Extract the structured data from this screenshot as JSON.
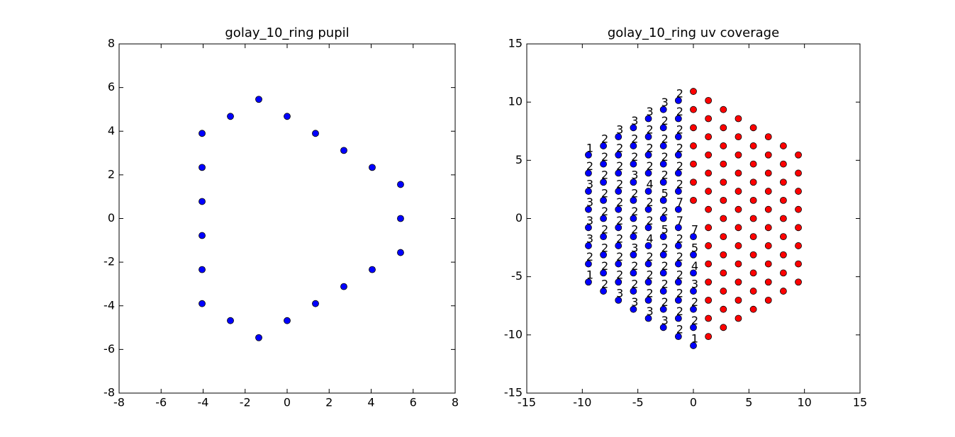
{
  "chart_data": [
    {
      "type": "scatter",
      "title": "golay_10_ring pupil",
      "xlim": [
        -8,
        8
      ],
      "ylim": [
        -8,
        8
      ],
      "xticks": [
        -8,
        -6,
        -4,
        -2,
        0,
        2,
        4,
        6,
        8
      ],
      "yticks": [
        -8,
        -6,
        -4,
        -2,
        0,
        2,
        4,
        6,
        8
      ],
      "series": [
        {
          "color": "#0000ff",
          "x": [
            -1.35,
            -2.7,
            0,
            -4.05,
            1.35,
            2.7,
            -4.05,
            4.05,
            5.4,
            -4.05,
            5.4,
            -4.05,
            5.4,
            -4.05,
            4.05,
            2.7,
            -4.05,
            1.35,
            -2.7,
            0,
            -1.35
          ],
          "y": [
            5.46,
            4.68,
            4.68,
            3.9,
            3.9,
            3.12,
            2.34,
            2.34,
            1.56,
            0.78,
            0,
            -0.78,
            -1.56,
            -2.34,
            -2.34,
            -3.12,
            -3.9,
            -3.9,
            -4.68,
            -4.68,
            -5.46
          ]
        }
      ]
    },
    {
      "type": "scatter",
      "title": "golay_10_ring uv coverage",
      "xlim": [
        -15,
        15
      ],
      "ylim": [
        -15,
        15
      ],
      "xticks": [
        -15,
        -10,
        -5,
        0,
        5,
        10,
        15
      ],
      "yticks": [
        -15,
        -10,
        -5,
        0,
        5,
        10,
        15
      ],
      "series": [
        {
          "color": "#0000ff",
          "x": [
            0,
            0,
            0,
            0,
            0,
            0,
            0,
            -1.35,
            -1.35,
            -1.35,
            -1.35,
            -1.35,
            -1.35,
            -1.35,
            -1.35,
            -1.35,
            -1.35,
            -1.35,
            -1.35,
            -1.35,
            -1.35,
            -2.7,
            -2.7,
            -2.7,
            -2.7,
            -2.7,
            -2.7,
            -2.7,
            -2.7,
            -2.7,
            -2.7,
            -2.7,
            -2.7,
            -2.7,
            -4.05,
            -4.05,
            -4.05,
            -4.05,
            -4.05,
            -4.05,
            -4.05,
            -4.05,
            -4.05,
            -4.05,
            -4.05,
            -4.05,
            -5.4,
            -5.4,
            -5.4,
            -5.4,
            -5.4,
            -5.4,
            -5.4,
            -5.4,
            -5.4,
            -5.4,
            -5.4,
            -6.75,
            -6.75,
            -6.75,
            -6.75,
            -6.75,
            -6.75,
            -6.75,
            -6.75,
            -6.75,
            -6.75,
            -8.1,
            -8.1,
            -8.1,
            -8.1,
            -8.1,
            -8.1,
            -8.1,
            -8.1,
            -8.1,
            -9.45,
            -9.45,
            -9.45,
            -9.45,
            -9.45,
            -9.45,
            -9.45,
            -9.45
          ],
          "y": [
            -1.56,
            -3.12,
            -4.68,
            -6.24,
            -7.8,
            -9.36,
            -10.92,
            10.14,
            8.58,
            7.02,
            5.46,
            3.9,
            2.34,
            0.78,
            -0.78,
            -2.34,
            -3.9,
            -5.46,
            -7.02,
            -8.58,
            -10.14,
            9.36,
            7.8,
            6.24,
            4.68,
            3.12,
            1.56,
            0,
            -1.56,
            -3.12,
            -4.68,
            -6.24,
            -7.8,
            -9.36,
            8.58,
            7.02,
            5.46,
            3.9,
            2.34,
            0.78,
            -0.78,
            -2.34,
            -3.9,
            -5.46,
            -7.02,
            -8.58,
            7.8,
            6.24,
            4.68,
            3.12,
            1.56,
            0,
            -1.56,
            -3.12,
            -4.68,
            -6.24,
            -7.8,
            7.02,
            5.46,
            3.9,
            2.34,
            0.78,
            -0.78,
            -2.34,
            -3.9,
            -5.46,
            -7.02,
            6.24,
            4.68,
            3.12,
            1.56,
            0,
            -1.56,
            -3.12,
            -4.68,
            -6.24,
            5.46,
            3.9,
            2.34,
            0.78,
            -0.78,
            -2.34,
            -3.9,
            -5.46
          ],
          "point_labels": [
            7,
            5,
            4,
            3,
            2,
            2,
            1,
            2,
            2,
            2,
            2,
            2,
            2,
            7,
            7,
            2,
            2,
            2,
            2,
            2,
            2,
            3,
            2,
            2,
            2,
            2,
            5,
            2,
            5,
            2,
            2,
            2,
            2,
            3,
            3,
            2,
            2,
            2,
            4,
            2,
            2,
            4,
            2,
            2,
            2,
            3,
            3,
            2,
            2,
            3,
            2,
            2,
            2,
            3,
            2,
            2,
            3,
            3,
            2,
            2,
            2,
            2,
            2,
            2,
            2,
            2,
            3,
            2,
            2,
            2,
            2,
            2,
            2,
            2,
            2,
            2,
            1,
            2,
            3,
            3,
            3,
            3,
            2,
            1
          ]
        },
        {
          "color": "#ff0000",
          "x": [
            0,
            0,
            0,
            0,
            0,
            0,
            0,
            1.35,
            1.35,
            1.35,
            1.35,
            1.35,
            1.35,
            1.35,
            1.35,
            1.35,
            1.35,
            1.35,
            1.35,
            1.35,
            1.35,
            2.7,
            2.7,
            2.7,
            2.7,
            2.7,
            2.7,
            2.7,
            2.7,
            2.7,
            2.7,
            2.7,
            2.7,
            2.7,
            4.05,
            4.05,
            4.05,
            4.05,
            4.05,
            4.05,
            4.05,
            4.05,
            4.05,
            4.05,
            4.05,
            4.05,
            5.4,
            5.4,
            5.4,
            5.4,
            5.4,
            5.4,
            5.4,
            5.4,
            5.4,
            5.4,
            5.4,
            6.75,
            6.75,
            6.75,
            6.75,
            6.75,
            6.75,
            6.75,
            6.75,
            6.75,
            6.75,
            8.1,
            8.1,
            8.1,
            8.1,
            8.1,
            8.1,
            8.1,
            8.1,
            8.1,
            9.45,
            9.45,
            9.45,
            9.45,
            9.45,
            9.45,
            9.45,
            9.45
          ],
          "y": [
            1.56,
            3.12,
            4.68,
            6.24,
            7.8,
            9.36,
            10.92,
            10.14,
            8.58,
            7.02,
            5.46,
            3.9,
            2.34,
            0.78,
            -0.78,
            -2.34,
            -3.9,
            -5.46,
            -7.02,
            -8.58,
            -10.14,
            9.36,
            7.8,
            6.24,
            4.68,
            3.12,
            1.56,
            0,
            -1.56,
            -3.12,
            -4.68,
            -6.24,
            -7.8,
            -9.36,
            8.58,
            7.02,
            5.46,
            3.9,
            2.34,
            0.78,
            -0.78,
            -2.34,
            -3.9,
            -5.46,
            -7.02,
            -8.58,
            7.8,
            6.24,
            4.68,
            3.12,
            1.56,
            0,
            -1.56,
            -3.12,
            -4.68,
            -6.24,
            -7.8,
            7.02,
            5.46,
            3.9,
            2.34,
            0.78,
            -0.78,
            -2.34,
            -3.9,
            -5.46,
            -7.02,
            6.24,
            4.68,
            3.12,
            1.56,
            0,
            -1.56,
            -3.12,
            -4.68,
            -6.24,
            5.46,
            3.9,
            2.34,
            0.78,
            -0.78,
            -2.34,
            -3.9,
            -5.46
          ]
        }
      ]
    }
  ]
}
